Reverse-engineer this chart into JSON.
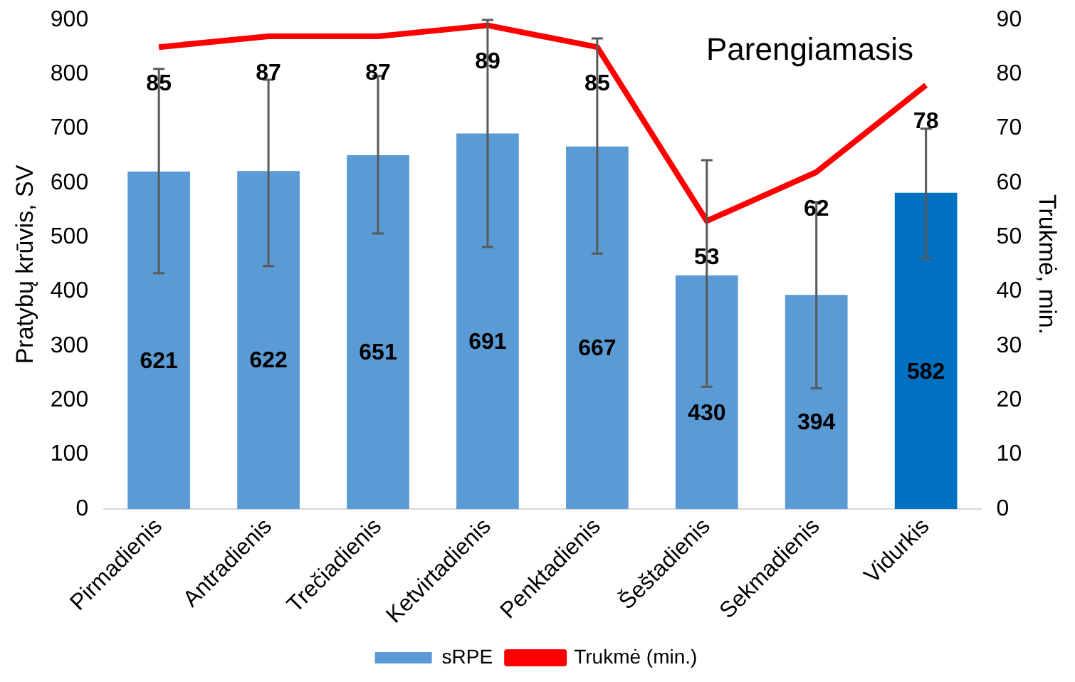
{
  "chart_data": {
    "type": "bar",
    "title": "Parengiamasis",
    "ylabel": "Pratybų krūvis, SV",
    "y2label": "Trukmė, min.",
    "categories": [
      "Pirmadienis",
      "Antradienis",
      "Trečiadienis",
      "Ketvirtadienis",
      "Penktadienis",
      "Šeštadienis",
      "Sekmadienis",
      "Vidurkis"
    ],
    "series": [
      {
        "name": "sRPE",
        "color": "#5b9bd5",
        "colors": [
          "#5b9bd5",
          "#5b9bd5",
          "#5b9bd5",
          "#5b9bd5",
          "#5b9bd5",
          "#5b9bd5",
          "#5b9bd5",
          "#0070c0"
        ],
        "values": [
          621,
          622,
          651,
          691,
          667,
          430,
          394,
          582
        ],
        "errors": [
          [
            434,
            810
          ],
          [
            447,
            790
          ],
          [
            507,
            797
          ],
          [
            482,
            900
          ],
          [
            470,
            866
          ],
          [
            225,
            642
          ],
          [
            222,
            565
          ],
          [
            461,
            700
          ]
        ]
      },
      {
        "name": "Trukmė (min.)",
        "type": "line",
        "axis": "y2",
        "color": "#ff0000",
        "values": [
          85,
          87,
          87,
          89,
          85,
          53,
          62,
          78
        ]
      }
    ],
    "ylim": [
      0,
      900
    ],
    "yticks": [
      0,
      100,
      200,
      300,
      400,
      500,
      600,
      700,
      800,
      900
    ],
    "y2lim": [
      0,
      90
    ],
    "y2ticks": [
      0,
      10,
      20,
      30,
      40,
      50,
      60,
      70,
      80,
      90
    ],
    "grid": false,
    "legend": "bottom",
    "data_labels": true,
    "marker": "none"
  }
}
